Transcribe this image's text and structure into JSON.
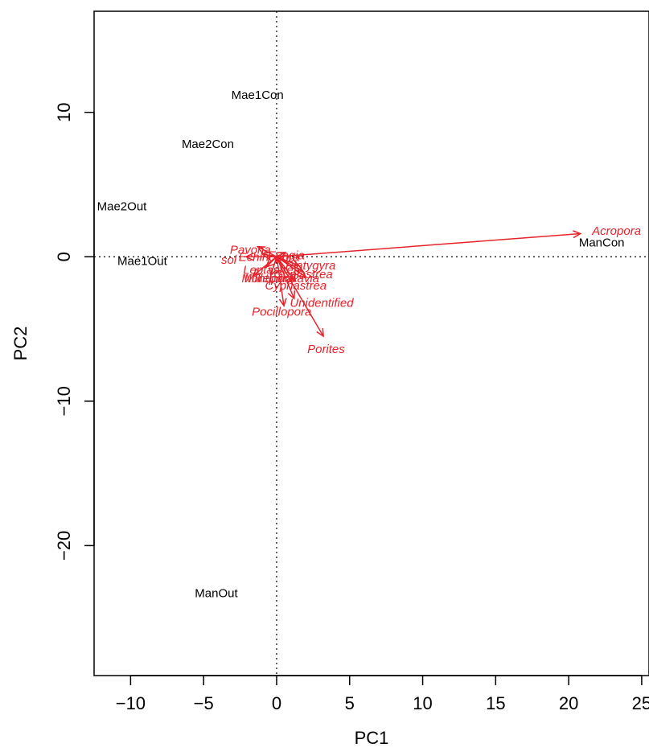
{
  "chart_data": {
    "type": "scatter",
    "title": "",
    "xlabel": "PC1",
    "ylabel": "PC2",
    "xlim": [
      -12.5,
      25.5
    ],
    "ylim": [
      -29,
      17
    ],
    "xticks": [
      -10,
      -5,
      0,
      5,
      10,
      15,
      20,
      25
    ],
    "yticks": [
      -20,
      -10,
      0,
      10
    ],
    "xtick_labels": [
      "−10",
      "−5",
      "0",
      "5",
      "10",
      "15",
      "20",
      "25"
    ],
    "ytick_labels": [
      "−20",
      "−10",
      "0",
      "10"
    ],
    "reference_lines": {
      "x": 0,
      "y": 0,
      "style": "dotted"
    },
    "arrow_color": "#e8222a",
    "site_color": "#000000",
    "sites": [
      {
        "label": "Mae1Con",
        "x": -3.1,
        "y": 11.2
      },
      {
        "label": "Mae2Con",
        "x": -6.5,
        "y": 7.8
      },
      {
        "label": "Mae2Out",
        "x": -12.3,
        "y": 3.5
      },
      {
        "label": "Mae1Out",
        "x": -10.9,
        "y": -0.3
      },
      {
        "label": "ManCon",
        "x": 20.7,
        "y": 1.0
      },
      {
        "label": "ManOut",
        "x": -5.6,
        "y": -23.3
      }
    ],
    "species": [
      {
        "label": "Acropora",
        "x": 20.8,
        "y": 1.6,
        "label_x": 21.6,
        "label_y": 1.8
      },
      {
        "label": "Porites",
        "x": 3.2,
        "y": -5.5,
        "label_x": 2.1,
        "label_y": -6.4
      },
      {
        "label": "Pocillopora",
        "x": 0.5,
        "y": -3.4,
        "label_x": -1.7,
        "label_y": -3.8
      },
      {
        "label": "Unidentified",
        "x": 1.2,
        "y": -2.9,
        "label_x": 0.9,
        "label_y": -3.2
      },
      {
        "label": "Cyphastrea",
        "x": 1.3,
        "y": -1.7,
        "label_x": -0.8,
        "label_y": -2.0
      },
      {
        "label": "Pavona",
        "x": -1.3,
        "y": 0.7,
        "label_x": -3.2,
        "label_y": 0.5
      },
      {
        "label": "sol",
        "x": -2.1,
        "y": 0.0,
        "label_x": -3.8,
        "label_y": -0.2
      },
      {
        "label": "Favia",
        "x": 2.0,
        "y": -1.4,
        "label_x": 0.9,
        "label_y": -1.5
      },
      {
        "label": "Goniastrea",
        "x": 1.8,
        "y": -1.0,
        "label_x": -0.2,
        "label_y": -1.2
      },
      {
        "label": "Montipora",
        "x": -1.6,
        "y": -1.3,
        "label_x": -2.4,
        "label_y": -1.5
      },
      {
        "label": "Leptastrea",
        "x": -0.7,
        "y": -0.7,
        "label_x": -2.3,
        "label_y": -0.9
      },
      {
        "label": "Platygyra",
        "x": 1.5,
        "y": -0.6,
        "label_x": 0.6,
        "label_y": -0.6
      },
      {
        "label": "Fungia",
        "x": 0.6,
        "y": 0.3,
        "label_x": -0.6,
        "label_y": 0.1
      },
      {
        "label": "Echinopora",
        "x": -1.0,
        "y": 0.2,
        "label_x": -2.6,
        "label_y": 0.0
      },
      {
        "label": "Millepora",
        "x": -0.4,
        "y": -1.3,
        "label_x": -2.2,
        "label_y": -1.5
      }
    ]
  }
}
